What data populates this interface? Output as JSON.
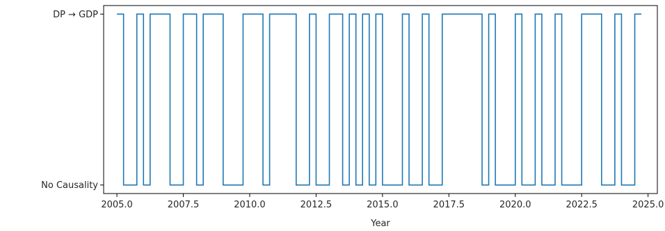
{
  "chart_data": {
    "type": "line",
    "step": "post",
    "title": "",
    "xlabel": "Year",
    "ylabel": "",
    "xlim": [
      2004.5,
      2025.35
    ],
    "ylim": [
      -0.05,
      1.05
    ],
    "x_ticks": [
      2005.0,
      2007.5,
      2010.0,
      2012.5,
      2015.0,
      2017.5,
      2020.0,
      2022.5,
      2025.0
    ],
    "x_tick_labels": [
      "2005.0",
      "2007.5",
      "2010.0",
      "2012.5",
      "2015.0",
      "2017.5",
      "2020.0",
      "2022.5",
      "2025.0"
    ],
    "y_ticks": [
      0,
      1
    ],
    "y_tick_labels": [
      "No Causality",
      "DP → GDP"
    ],
    "grid": false,
    "series_color": "#1f77b4",
    "x": [
      2005.0,
      2005.25,
      2005.5,
      2005.75,
      2006.0,
      2006.25,
      2006.5,
      2006.75,
      2007.0,
      2007.25,
      2007.5,
      2007.75,
      2008.0,
      2008.25,
      2008.5,
      2008.75,
      2009.0,
      2009.25,
      2009.5,
      2009.75,
      2010.0,
      2010.25,
      2010.5,
      2010.75,
      2011.0,
      2011.25,
      2011.5,
      2011.75,
      2012.0,
      2012.25,
      2012.5,
      2012.75,
      2013.0,
      2013.25,
      2013.5,
      2013.75,
      2014.0,
      2014.25,
      2014.5,
      2014.75,
      2015.0,
      2015.25,
      2015.5,
      2015.75,
      2016.0,
      2016.25,
      2016.5,
      2016.75,
      2017.0,
      2017.25,
      2017.5,
      2017.75,
      2018.0,
      2018.25,
      2018.5,
      2018.75,
      2019.0,
      2019.25,
      2019.5,
      2019.75,
      2020.0,
      2020.25,
      2020.5,
      2020.75,
      2021.0,
      2021.25,
      2021.5,
      2021.75,
      2022.0,
      2022.25,
      2022.5,
      2022.75,
      2023.0,
      2023.25,
      2023.5,
      2023.75,
      2024.0,
      2024.25,
      2024.5,
      2024.75
    ],
    "values": [
      1,
      0,
      0,
      1,
      0,
      1,
      1,
      1,
      0,
      0,
      1,
      1,
      0,
      1,
      1,
      1,
      0,
      0,
      0,
      1,
      1,
      1,
      0,
      1,
      1,
      1,
      1,
      0,
      0,
      1,
      0,
      0,
      1,
      1,
      0,
      1,
      0,
      1,
      0,
      1,
      0,
      0,
      0,
      1,
      0,
      0,
      1,
      0,
      0,
      1,
      1,
      1,
      1,
      1,
      1,
      0,
      1,
      0,
      0,
      0,
      1,
      0,
      0,
      1,
      0,
      0,
      1,
      0,
      0,
      0,
      1,
      1,
      1,
      0,
      0,
      1,
      0,
      0,
      1,
      1
    ]
  }
}
